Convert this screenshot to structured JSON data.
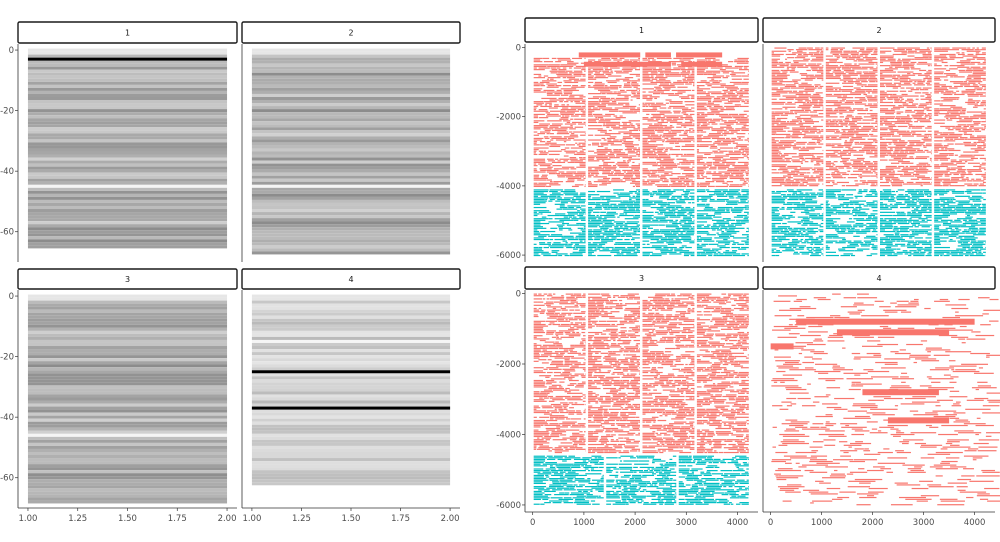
{
  "chart_data": [
    {
      "type": "heatmap",
      "description_facets": [
        "1",
        "2",
        "3",
        "4"
      ],
      "facets": [
        {
          "label": "1",
          "x_range": [
            1.0,
            2.0
          ],
          "y_min": -65,
          "highlight_rows": [
            {
              "y": -3,
              "color": "#000000"
            }
          ],
          "light_rows": [
            -45
          ]
        },
        {
          "label": "2",
          "x_range": [
            1.0,
            2.0
          ],
          "y_min": -67,
          "highlight_rows": [],
          "light_rows": [
            -45
          ]
        },
        {
          "label": "3",
          "x_range": [
            1.0,
            2.0
          ],
          "y_min": -68,
          "highlight_rows": [],
          "light_rows": [
            -46
          ]
        },
        {
          "label": "4",
          "x_range": [
            1.0,
            2.0
          ],
          "y_min": -62,
          "highlight_rows": [
            {
              "y": -25,
              "color": "#000000"
            },
            {
              "y": -37,
              "color": "#000000"
            }
          ],
          "light_rows": [
            -15
          ]
        }
      ],
      "x_ticks": [
        "1.00",
        "1.25",
        "1.50",
        "1.75",
        "2.00"
      ],
      "x_tick_values": [
        1.0,
        1.25,
        1.5,
        1.75,
        2.0
      ],
      "y_ticks": [
        "0",
        "-20",
        "-40",
        "-60"
      ],
      "y_tick_values": [
        0,
        -20,
        -40,
        -60
      ],
      "xlim": [
        0.95,
        2.05
      ],
      "ylim": [
        -70,
        2
      ],
      "grid": false
    },
    {
      "type": "scatter",
      "facets": [
        {
          "label": "1",
          "series": [
            {
              "color": "#F8766D",
              "y_range": [
                -300,
                -4000
              ],
              "columns": 4,
              "header_bars": true
            },
            {
              "color": "#00BFC4",
              "y_range": [
                -4100,
                -6000
              ],
              "columns": 4
            }
          ]
        },
        {
          "label": "2",
          "series": [
            {
              "color": "#F8766D",
              "y_range": [
                0,
                -4000
              ],
              "columns": 4
            },
            {
              "color": "#00BFC4",
              "y_range": [
                -4100,
                -6000
              ],
              "columns": 4
            }
          ]
        },
        {
          "label": "3",
          "series": [
            {
              "color": "#F8766D",
              "y_range": [
                0,
                -4500
              ],
              "columns": 4
            },
            {
              "color": "#00BFC4",
              "y_range": [
                -4600,
                -6000
              ],
              "columns": 3
            }
          ]
        },
        {
          "label": "4",
          "series": [
            {
              "color": "#F8766D",
              "y_range": [
                0,
                -6000
              ],
              "columns": 1,
              "sparse": true
            }
          ]
        }
      ],
      "x_ticks": [
        "0",
        "1000",
        "2000",
        "3000",
        "4000"
      ],
      "x_tick_values": [
        0,
        1000,
        2000,
        3000,
        4000
      ],
      "y_ticks": [
        "0",
        "-2000",
        "-4000",
        "-6000"
      ],
      "y_tick_values": [
        0,
        -2000,
        -4000,
        -6000
      ],
      "xlim": [
        -150,
        4400
      ],
      "ylim": [
        -6200,
        100
      ],
      "grid": false
    }
  ],
  "colors": {
    "red": "#F8766D",
    "teal": "#00BFC4",
    "strip_fill": "#ffffff",
    "strip_border": "#1a1a1a"
  }
}
